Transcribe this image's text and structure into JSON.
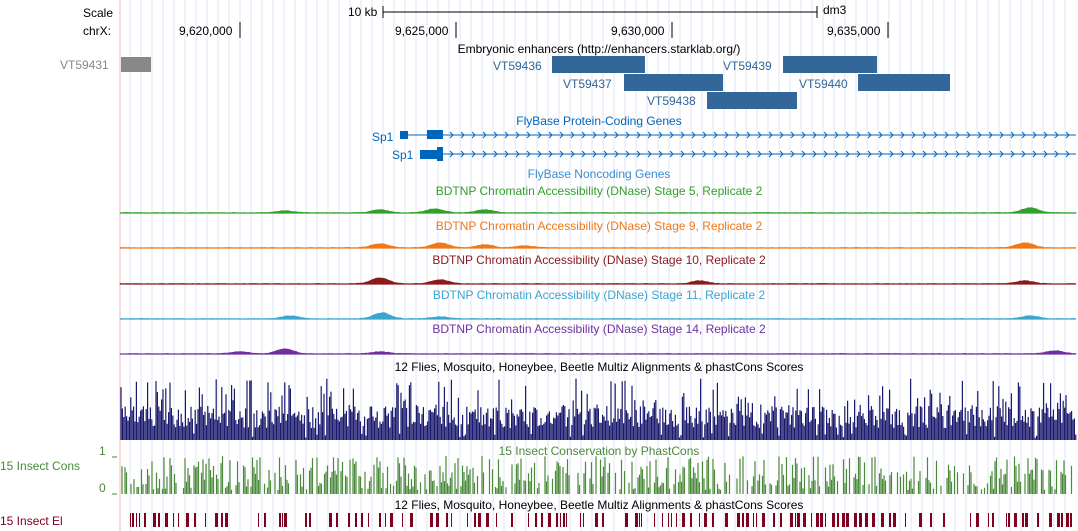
{
  "ruler": {
    "scale_label": "Scale",
    "scale_bar_label": "10 kb",
    "assembly": "dm3",
    "chrom_label": "chrX:",
    "ticks": [
      "9,620,000",
      "9,625,000",
      "9,630,000",
      "9,635,000"
    ]
  },
  "tracks": {
    "enhancers": {
      "title": "Embryonic enhancers (http://enhancers.starklab.org/)",
      "offscreen_item": "VT59431",
      "items": [
        "VT59436",
        "VT59437",
        "VT59438",
        "VT59439",
        "VT59440"
      ],
      "color": "#336699"
    },
    "protein_coding": {
      "title": "FlyBase Protein-Coding Genes",
      "genes": [
        "Sp1",
        "Sp1"
      ],
      "color": "#0066bb"
    },
    "noncoding": {
      "title": "FlyBase Noncoding Genes"
    },
    "dnase": [
      {
        "title": "BDTNP Chromatin Accessibility (DNase) Stage 5, Replicate 2",
        "color": "#33a02c"
      },
      {
        "title": "BDTNP Chromatin Accessibility (DNase) Stage 9, Replicate 2",
        "color": "#f07818"
      },
      {
        "title": "BDTNP Chromatin Accessibility (DNase) Stage 10, Replicate 2",
        "color": "#8b1a1a"
      },
      {
        "title": "BDTNP Chromatin Accessibility (DNase) Stage 11, Replicate 2",
        "color": "#3aa6d0"
      },
      {
        "title": "BDTNP Chromatin Accessibility (DNase) Stage 14, Replicate 2",
        "color": "#7030a0"
      }
    ],
    "multiz": {
      "title": "12 Flies, Mosquito, Honeybee, Beetle Multiz Alignments & phastCons Scores",
      "color": "#1a1a6e"
    },
    "phastcons": {
      "title": "15 Insect Conservation by PhastCons",
      "left_label": "15 Insect Cons",
      "y_max": "1",
      "y_min": "0",
      "color": "#4a8a3a"
    },
    "elements": {
      "title": "12 Flies, Mosquito, Honeybee, Beetle Multiz Alignments & phastCons Scores",
      "left_label": "15 Insect El",
      "color": "#800020"
    }
  }
}
